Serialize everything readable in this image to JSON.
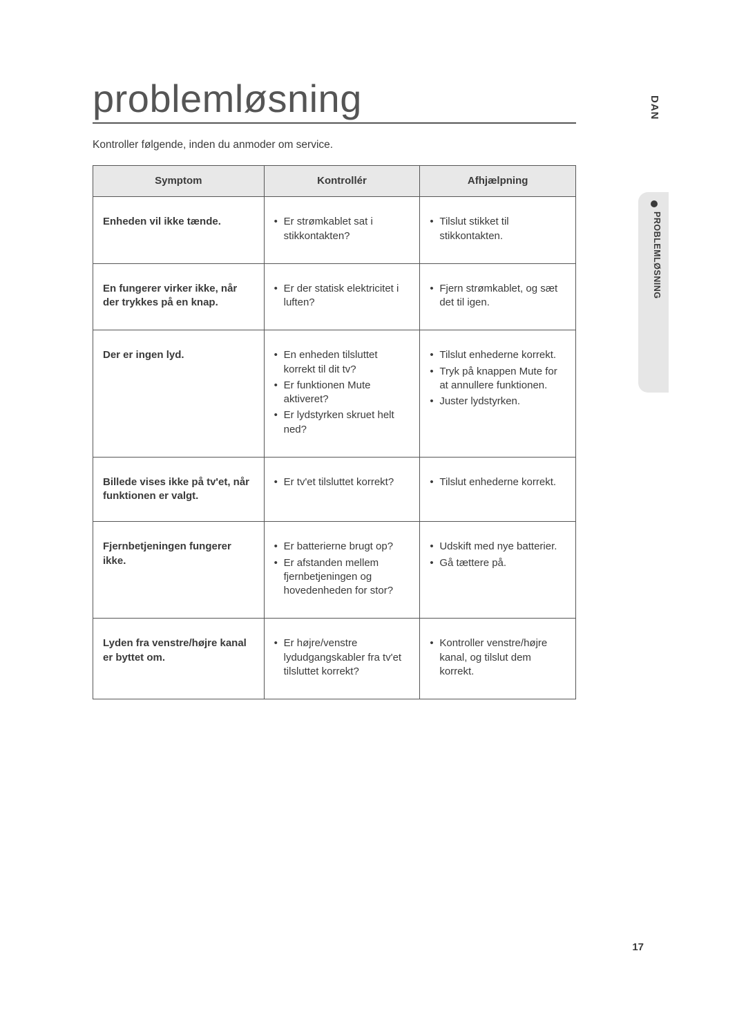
{
  "language_tab": "DAN",
  "section_tab": "PROBLEMLØSNING",
  "page_number": "17",
  "title": "problemløsning",
  "intro": "Kontroller følgende, inden du anmoder om service.",
  "table": {
    "headers": {
      "symptom": "Symptom",
      "check": "Kontrollér",
      "remedy": "Afhjælpning"
    },
    "rows": [
      {
        "symptom": "Enheden vil ikke tænde.",
        "check": [
          "Er strømkablet sat i stikkontakten?"
        ],
        "remedy": [
          "Tilslut stikket til stikkontakten."
        ]
      },
      {
        "symptom": "En fungerer virker ikke, når der trykkes på en knap.",
        "check": [
          "Er der statisk elektricitet i luften?"
        ],
        "remedy": [
          "Fjern strømkablet, og sæt det til igen."
        ]
      },
      {
        "symptom": "Der er ingen lyd.",
        "check": [
          "En enheden tilsluttet korrekt til dit tv?",
          "Er funktionen Mute aktiveret?",
          "Er lydstyrken skruet helt ned?"
        ],
        "remedy": [
          "Tilslut enhederne korrekt.",
          "Tryk på knappen Mute for at annullere funktionen.",
          "Juster lydstyrken."
        ]
      },
      {
        "symptom": "Billede vises ikke på tv'et, når funktionen er valgt.",
        "check": [
          "Er tv'et tilsluttet korrekt?"
        ],
        "remedy": [
          "Tilslut enhederne korrekt."
        ]
      },
      {
        "symptom": "Fjernbetjeningen fungerer ikke.",
        "check": [
          "Er batterierne brugt op?",
          "Er afstanden mellem fjernbetjeningen og hovedenheden for stor?"
        ],
        "remedy": [
          "Udskift med nye batterier.",
          "Gå tættere på."
        ]
      },
      {
        "symptom": "Lyden fra venstre/højre kanal er byttet om.",
        "check": [
          "Er højre/venstre lydudgangskabler fra tv'et tilsluttet korrekt?"
        ],
        "remedy": [
          "Kontroller venstre/højre kanal, og tilslut dem korrekt."
        ]
      }
    ]
  },
  "colors": {
    "page_bg": "#ffffff",
    "text": "#3a3a3a",
    "rule": "#555555",
    "header_bg": "#e8e8e8",
    "tab_bg": "#e6e6e6"
  }
}
